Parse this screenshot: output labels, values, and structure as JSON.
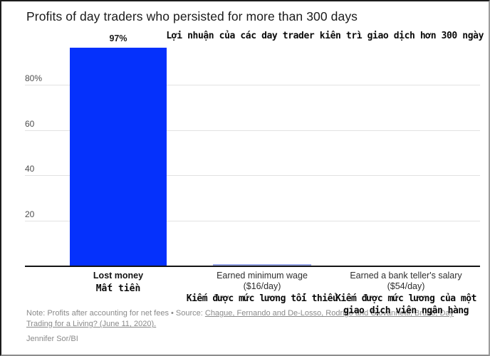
{
  "title": "Profits of day traders who persisted for more than 300 days",
  "overlay": {
    "title_vi": "Lợi nhuận của các day trader kiên trì giao dịch hơn 300 ngày",
    "cat1_vi": "Mất tiền",
    "cat2_vi": "Kiếm được mức lương tối thiểu",
    "cat3_vi_line1": "Kiếm được mức lương của một",
    "cat3_vi_line2": "giao dịch viên ngân hàng"
  },
  "chart_data": {
    "type": "bar",
    "title": "Profits of day traders who persisted for more than 300 days",
    "categories": [
      "Lost money",
      "Earned minimum wage",
      "Earned a bank teller's salary"
    ],
    "sub_labels": [
      "",
      "($16/day)",
      "($54/day)"
    ],
    "values": [
      97,
      1.1,
      0
    ],
    "value_labels": [
      "97%",
      "",
      ""
    ],
    "ylim": [
      0,
      100
    ],
    "yticks": [
      20,
      40,
      60,
      80
    ],
    "ytick_labels": [
      "20",
      "40",
      "60",
      "80%"
    ],
    "grid": true,
    "legend": false,
    "bar_colors": [
      "#0531fc",
      "#97a5e8",
      "#0531fc"
    ]
  },
  "footer": {
    "note_prefix": "Note: Profits after accounting for net fees • Source: ",
    "source_link_line1": "Chague, Fernando and De-Losso, Rodrigo and Giovannetti, Bruno, Day",
    "source_link_line2": "Trading for a Living? (June 11, 2020).",
    "byline": "Jennifer Sor/BI"
  },
  "colors": {
    "bar_blue": "#0531fc",
    "bar_light_blue": "#97a5e8",
    "gridline": "#e2e2e2",
    "axis": "#141414",
    "note_gray": "#8a8a8a",
    "text_dark": "#1a1a1a"
  }
}
